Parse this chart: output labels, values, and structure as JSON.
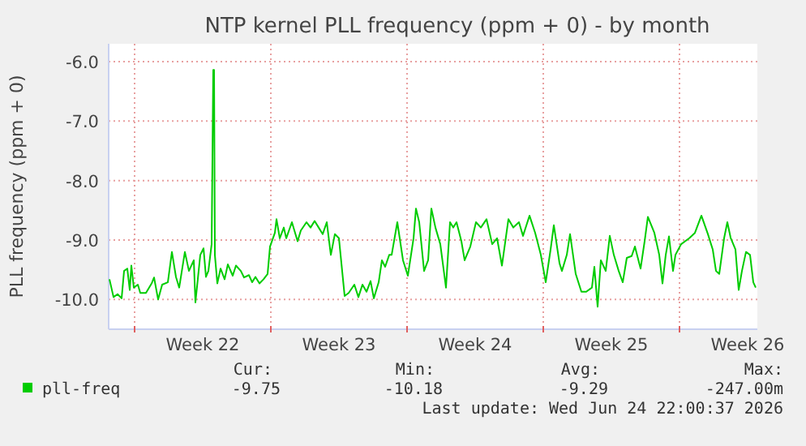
{
  "chart_data": {
    "type": "line",
    "title": "NTP kernel PLL frequency (ppm + 0) - by month",
    "ylabel": "PLL frequency (ppm + 0)",
    "xlim": [
      "2026-05-22T14:00",
      "2026-06-24T22:00"
    ],
    "ylim": [
      -10.5,
      -5.7
    ],
    "xticks": [
      {
        "value": "2026-05-23T22:00",
        "label": null
      },
      {
        "value": "2026-05-27T10:00",
        "label": "Week 22"
      },
      {
        "value": "2026-05-30T22:00",
        "label": null
      },
      {
        "value": "2026-06-03T10:00",
        "label": "Week 23"
      },
      {
        "value": "2026-06-06T22:00",
        "label": null
      },
      {
        "value": "2026-06-10T10:00",
        "label": "Week 24"
      },
      {
        "value": "2026-06-13T22:00",
        "label": null
      },
      {
        "value": "2026-06-17T10:00",
        "label": "Week 25"
      },
      {
        "value": "2026-06-20T22:00",
        "label": null
      },
      {
        "value": "2026-06-24T10:00",
        "label": "Week 26"
      }
    ],
    "yticks": [
      {
        "value": -10,
        "label": "-10.0"
      },
      {
        "value": -9,
        "label": "-9.0"
      },
      {
        "value": -8,
        "label": "-8.0"
      },
      {
        "value": -7,
        "label": "-7.0"
      },
      {
        "value": -6,
        "label": "-6.0"
      }
    ],
    "grid": true,
    "legend": "bottom",
    "series": [
      {
        "name": "pll-freq",
        "color": "#00cc00",
        "x": [
          "2026-05-22T15:00",
          "2026-05-22T20:00",
          "2026-05-23T01:00",
          "2026-05-23T06:00",
          "2026-05-23T09:00",
          "2026-05-23T13:00",
          "2026-05-23T16:00",
          "2026-05-23T18:00",
          "2026-05-23T21:00",
          "2026-05-24T02:00",
          "2026-05-24T05:00",
          "2026-05-24T12:00",
          "2026-05-24T19:00",
          "2026-05-24T22:00",
          "2026-05-25T03:00",
          "2026-05-25T08:00",
          "2026-05-25T15:00",
          "2026-05-25T20:00",
          "2026-05-26T01:00",
          "2026-05-26T05:00",
          "2026-05-26T12:00",
          "2026-05-26T17:00",
          "2026-05-26T23:00",
          "2026-05-27T01:00",
          "2026-05-27T07:00",
          "2026-05-27T11:00",
          "2026-05-27T14:00",
          "2026-05-27T17:00",
          "2026-05-27T21:00",
          "2026-05-27T23:00",
          "2026-05-28T00:00",
          "2026-05-28T01:00",
          "2026-05-28T04:00",
          "2026-05-28T08:00",
          "2026-05-28T13:00",
          "2026-05-28T17:00",
          "2026-05-28T23:00",
          "2026-05-29T03:00",
          "2026-05-29T09:00",
          "2026-05-29T13:00",
          "2026-05-29T19:00",
          "2026-05-29T23:00",
          "2026-05-30T03:00",
          "2026-05-30T08:00",
          "2026-05-30T13:00",
          "2026-05-30T18:00",
          "2026-05-30T21:00",
          "2026-05-31T03:00",
          "2026-05-31T05:00",
          "2026-05-31T09:00",
          "2026-05-31T14:00",
          "2026-05-31T17:00",
          "2026-06-01T00:00",
          "2026-06-01T07:00",
          "2026-06-01T11:00",
          "2026-06-01T18:00",
          "2026-06-01T23:00",
          "2026-06-02T04:00",
          "2026-06-02T09:00",
          "2026-06-02T14:00",
          "2026-06-02T19:00",
          "2026-06-03T00:00",
          "2026-06-03T05:00",
          "2026-06-03T10:00",
          "2026-06-03T17:00",
          "2026-06-03T22:00",
          "2026-06-04T05:00",
          "2026-06-04T10:00",
          "2026-06-04T15:00",
          "2026-06-04T20:00",
          "2026-06-05T01:00",
          "2026-06-05T05:00",
          "2026-06-05T11:00",
          "2026-06-05T15:00",
          "2026-06-05T19:00",
          "2026-06-06T00:00",
          "2026-06-06T03:00",
          "2026-06-06T10:00",
          "2026-06-06T17:00",
          "2026-06-06T23:00",
          "2026-06-07T06:00",
          "2026-06-07T09:00",
          "2026-06-07T13:00",
          "2026-06-07T19:00",
          "2026-06-08T00:00",
          "2026-06-08T04:00",
          "2026-06-08T09:00",
          "2026-06-08T15:00",
          "2026-06-08T22:00",
          "2026-06-09T03:00",
          "2026-06-09T07:00",
          "2026-06-09T11:00",
          "2026-06-09T17:00",
          "2026-06-09T21:00",
          "2026-06-10T04:00",
          "2026-06-10T11:00",
          "2026-06-10T17:00",
          "2026-06-11T00:00",
          "2026-06-11T07:00",
          "2026-06-11T13:00",
          "2026-06-11T19:00",
          "2026-06-12T03:00",
          "2026-06-12T09:00",
          "2026-06-12T16:00",
          "2026-06-12T21:00",
          "2026-06-13T05:00",
          "2026-06-13T12:00",
          "2026-06-13T19:00",
          "2026-06-14T01:00",
          "2026-06-14T07:00",
          "2026-06-14T11:00",
          "2026-06-14T18:00",
          "2026-06-14T21:00",
          "2026-06-15T03:00",
          "2026-06-15T07:00",
          "2026-06-15T14:00",
          "2026-06-15T21:00",
          "2026-06-16T03:00",
          "2026-06-16T10:00",
          "2026-06-16T13:00",
          "2026-06-16T17:00",
          "2026-06-16T21:00",
          "2026-06-17T03:00",
          "2026-06-17T08:00",
          "2026-06-17T13:00",
          "2026-06-17T19:00",
          "2026-06-18T00:00",
          "2026-06-18T05:00",
          "2026-06-18T11:00",
          "2026-06-18T15:00",
          "2026-06-18T22:00",
          "2026-06-19T03:00",
          "2026-06-19T07:00",
          "2026-06-19T15:00",
          "2026-06-19T21:00",
          "2026-06-20T01:00",
          "2026-06-20T05:00",
          "2026-06-20T09:00",
          "2026-06-20T14:00",
          "2026-06-20T17:00",
          "2026-06-21T00:00",
          "2026-06-21T10:00",
          "2026-06-21T17:00",
          "2026-06-22T01:00",
          "2026-06-22T09:00",
          "2026-06-22T15:00",
          "2026-06-22T19:00",
          "2026-06-22T23:00",
          "2026-06-23T05:00",
          "2026-06-23T09:00",
          "2026-06-23T13:00",
          "2026-06-23T19:00",
          "2026-06-23T23:00",
          "2026-06-24T03:00",
          "2026-06-24T08:00",
          "2026-06-24T13:00",
          "2026-06-24T17:00",
          "2026-06-24T20:00"
        ],
        "values": [
          -9.66,
          -9.96,
          -9.91,
          -9.98,
          -9.52,
          -9.48,
          -9.84,
          -9.43,
          -9.8,
          -9.75,
          -9.89,
          -9.89,
          -9.73,
          -9.63,
          -10,
          -9.75,
          -9.71,
          -9.2,
          -9.62,
          -9.8,
          -9.2,
          -9.52,
          -9.34,
          -10.05,
          -9.25,
          -9.14,
          -9.62,
          -9.52,
          -9.07,
          -6.14,
          -6.14,
          -9.25,
          -9.73,
          -9.48,
          -9.66,
          -9.41,
          -9.6,
          -9.43,
          -9.52,
          -9.63,
          -9.59,
          -9.71,
          -9.62,
          -9.73,
          -9.66,
          -9.57,
          -9.11,
          -8.88,
          -8.65,
          -8.97,
          -8.79,
          -8.97,
          -8.7,
          -9.02,
          -8.84,
          -8.7,
          -8.79,
          -8.68,
          -8.79,
          -8.9,
          -8.7,
          -9.25,
          -8.9,
          -8.97,
          -9.94,
          -9.89,
          -9.75,
          -9.96,
          -9.75,
          -9.87,
          -9.69,
          -9.98,
          -9.71,
          -9.34,
          -9.45,
          -9.25,
          -9.25,
          -8.7,
          -9.34,
          -9.6,
          -8.97,
          -8.47,
          -8.7,
          -9.52,
          -9.34,
          -8.47,
          -8.79,
          -9.07,
          -9.8,
          -8.7,
          -8.79,
          -8.7,
          -9.02,
          -9.34,
          -9.11,
          -8.7,
          -8.79,
          -8.65,
          -9.07,
          -8.97,
          -9.43,
          -8.65,
          -8.79,
          -8.7,
          -8.93,
          -8.59,
          -8.88,
          -9.25,
          -9.71,
          -9.16,
          -8.75,
          -9.39,
          -9.52,
          -9.25,
          -8.9,
          -9.57,
          -9.87,
          -9.87,
          -9.8,
          -9.45,
          -10.12,
          -9.34,
          -9.52,
          -8.93,
          -9.25,
          -9.52,
          -9.71,
          -9.3,
          -9.27,
          -9.11,
          -9.48,
          -9.02,
          -8.61,
          -8.88,
          -9.25,
          -9.73,
          -9.25,
          -8.94,
          -9.52,
          -9.25,
          -9.07,
          -8.97,
          -8.88,
          -8.59,
          -8.9,
          -9.16,
          -9.52,
          -9.57,
          -8.97,
          -8.7,
          -8.96,
          -9.16,
          -9.84,
          -9.52,
          -9.2,
          -9.25,
          -9.71,
          -9.8
        ]
      }
    ],
    "annotations": [
      "Cur:",
      "Min:",
      "Avg:",
      "Max:",
      "-9.75",
      "-10.18",
      "-9.29",
      "-247.00m",
      "Last update: Wed Jun 24 22:00:37 2026"
    ]
  }
}
